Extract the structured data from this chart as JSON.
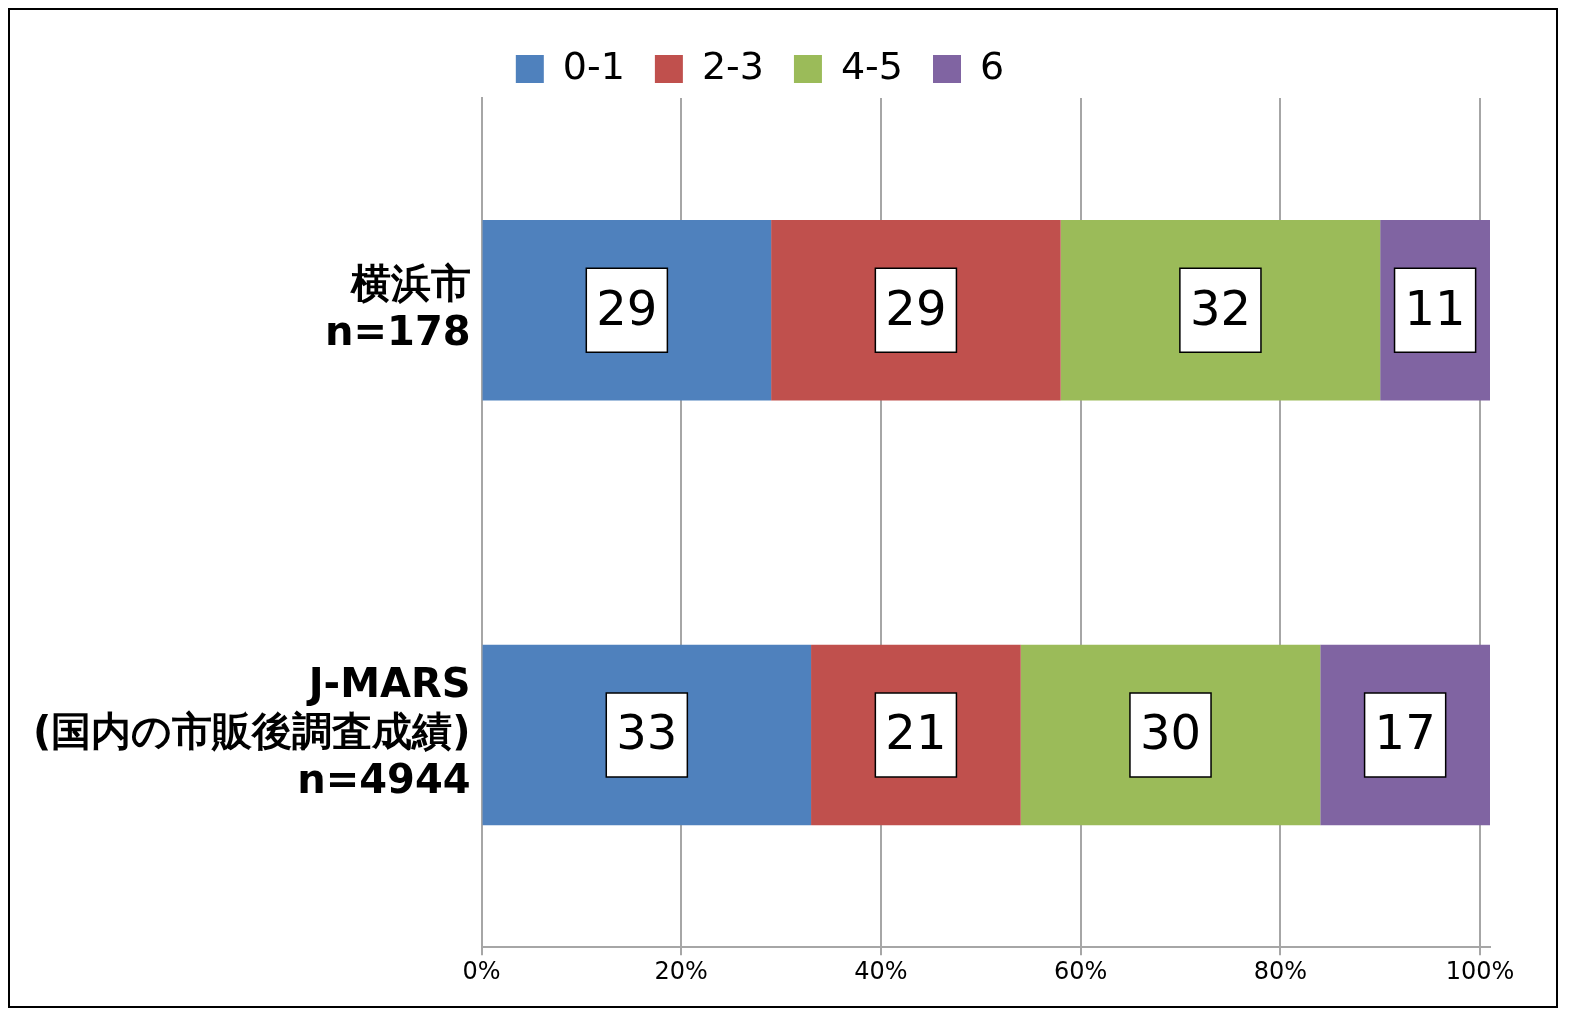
{
  "chart_data": {
    "type": "bar",
    "orientation": "horizontal",
    "stacked": true,
    "categories": [
      "横浜市\nn=178",
      "J-MARS\n(国内の市販後調査成績)\nn=4944"
    ],
    "series": [
      {
        "name": "0-1",
        "color": "#4f81bd",
        "values": [
          29,
          33
        ]
      },
      {
        "name": "2-3",
        "color": "#c0504d",
        "values": [
          29,
          21
        ]
      },
      {
        "name": "4-5",
        "color": "#9bbb59",
        "values": [
          32,
          30
        ]
      },
      {
        "name": "6",
        "color": "#8064a2",
        "values": [
          11,
          17
        ]
      }
    ],
    "xlim": [
      0,
      101
    ],
    "xticks": [
      {
        "value": 0,
        "label": "0%"
      },
      {
        "value": 20,
        "label": "20%"
      },
      {
        "value": 40,
        "label": "40%"
      },
      {
        "value": 60,
        "label": "60%"
      },
      {
        "value": 80,
        "label": "80%"
      },
      {
        "value": 100,
        "label": "100%"
      }
    ],
    "grid": "x",
    "legend": "top",
    "data_labels": true
  }
}
